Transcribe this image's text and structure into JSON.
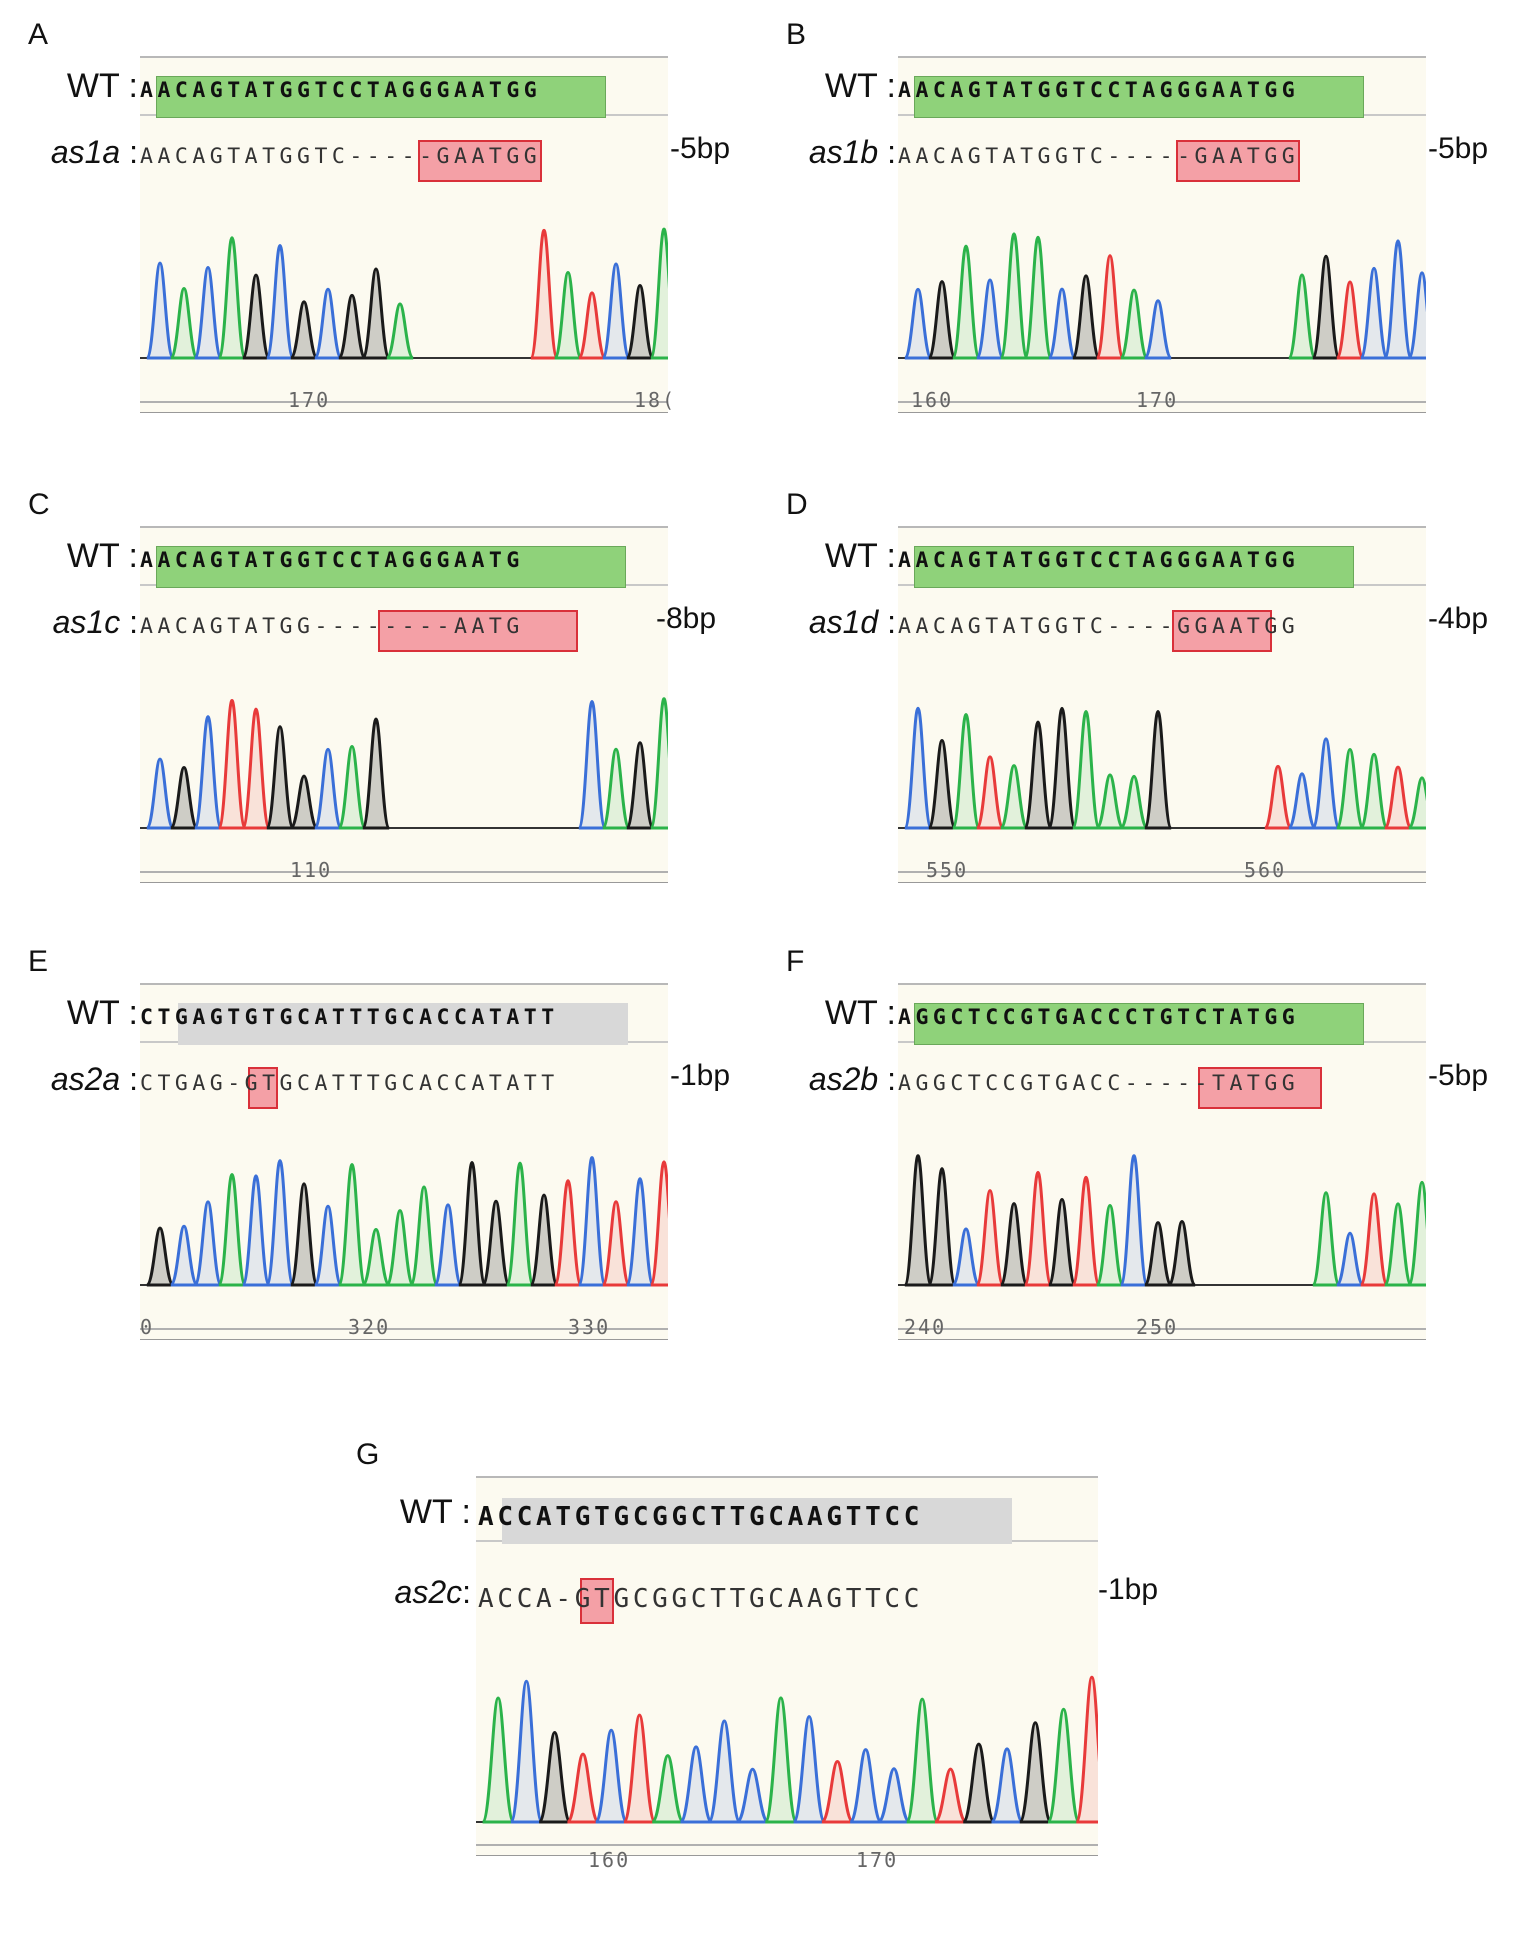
{
  "figure": {
    "wt_prefix": "WT :",
    "panels": [
      {
        "letter": "A",
        "mutant": "as1a",
        "size": "-5bp",
        "wt_seq": "AACAGTATGGTCCTAGGGAATGG",
        "mut_seq": "AACAGTATGGTC-----GAATGG",
        "highlight": "green",
        "ticks": [
          "170",
          "18("
        ]
      },
      {
        "letter": "B",
        "mutant": "as1b",
        "size": "-5bp",
        "wt_seq": "AACAGTATGGTCCTAGGGAATGG",
        "mut_seq": "AACAGTATGGTC-----GAATGG",
        "highlight": "green",
        "ticks": [
          "160",
          "170"
        ]
      },
      {
        "letter": "C",
        "mutant": "as1c",
        "size": "-8bp",
        "wt_seq": "AACAGTATGGTCCTAGGGAATG",
        "mut_seq": "AACAGTATGG--------AATG",
        "highlight": "green",
        "ticks": [
          "110"
        ]
      },
      {
        "letter": "D",
        "mutant": "as1d",
        "size": "-4bp",
        "wt_seq": "AACAGTATGGTCCTAGGGAATGG",
        "mut_seq": "AACAGTATGGTC----GGAATGG",
        "highlight": "green",
        "ticks": [
          "550",
          "560"
        ]
      },
      {
        "letter": "E",
        "mutant": "as2a",
        "size": "-1bp",
        "wt_seq": "CTGAGTGTGCATTTGCACCATATT",
        "mut_seq": "CTGAG-GTGCATTTGCACCATATT",
        "highlight": "gray",
        "ticks": [
          "0",
          "320",
          "330"
        ]
      },
      {
        "letter": "F",
        "mutant": "as2b",
        "size": "-5bp",
        "wt_seq": "AGGCTCCGTGACCCTGTCTATGG",
        "mut_seq": "AGGCTCCGTGACC-----TATGG",
        "highlight": "green",
        "ticks": [
          "240",
          "250"
        ]
      },
      {
        "letter": "G",
        "mutant": "as2c",
        "size": "-1bp",
        "wt_seq": "ACCATGTGCGGCTTGCAAGTTCC",
        "mut_seq": "ACCA-GTGCGGCTTGCAAGTTCC",
        "highlight": "gray",
        "ticks": [
          "160",
          "170"
        ]
      }
    ]
  }
}
